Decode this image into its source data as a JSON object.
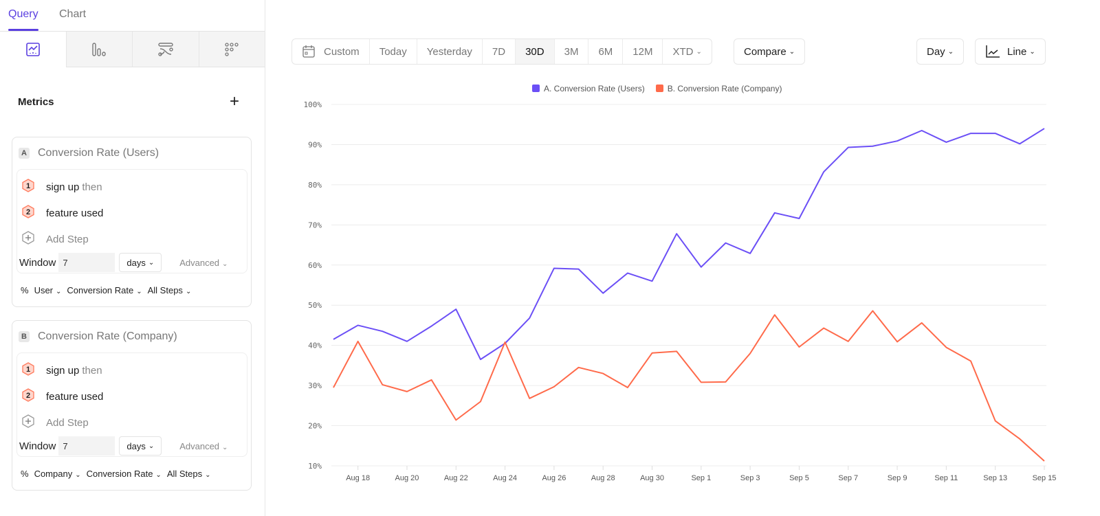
{
  "sidebar": {
    "tabs": [
      {
        "label": "Query",
        "active": true
      },
      {
        "label": "Chart",
        "active": false
      }
    ],
    "viz_icons": [
      "line-chart-icon",
      "bar-chart-icon",
      "flows-icon",
      "retention-grid-icon"
    ],
    "metrics_title": "Metrics",
    "cards": [
      {
        "letter": "A",
        "title": "Conversion Rate (Users)",
        "steps": [
          {
            "n": "1",
            "label": "sign up",
            "suffix": "then"
          },
          {
            "n": "2",
            "label": "feature used",
            "suffix": ""
          }
        ],
        "add_step": "Add Step",
        "window_label": "Window",
        "window_value": "7",
        "window_unit": "days",
        "advanced": "Advanced",
        "footer": [
          "%",
          "User",
          "Conversion Rate",
          "All Steps"
        ]
      },
      {
        "letter": "B",
        "title": "Conversion Rate (Company)",
        "steps": [
          {
            "n": "1",
            "label": "sign up",
            "suffix": "then"
          },
          {
            "n": "2",
            "label": "feature used",
            "suffix": ""
          }
        ],
        "add_step": "Add Step",
        "window_label": "Window",
        "window_value": "7",
        "window_unit": "days",
        "advanced": "Advanced",
        "footer": [
          "%",
          "Company",
          "Conversion Rate",
          "All Steps"
        ]
      }
    ]
  },
  "toolbar": {
    "ranges": [
      "Custom",
      "Today",
      "Yesterday",
      "7D",
      "30D",
      "3M",
      "6M",
      "12M",
      "XTD"
    ],
    "selected": "30D",
    "compare": "Compare",
    "interval": "Day",
    "chart_type": "Line"
  },
  "colors": {
    "accent": "#5a3fe0",
    "series_a": "#6b4ff6",
    "series_b": "#ff6a4a"
  },
  "chart_data": {
    "type": "line",
    "legend": "top-center",
    "ylim": [
      10,
      100
    ],
    "yticks": [
      "100%",
      "90%",
      "80%",
      "70%",
      "60%",
      "50%",
      "40%",
      "30%",
      "20%",
      "10%"
    ],
    "x": [
      "Aug 17",
      "Aug 18",
      "Aug 19",
      "Aug 20",
      "Aug 21",
      "Aug 22",
      "Aug 23",
      "Aug 24",
      "Aug 25",
      "Aug 26",
      "Aug 27",
      "Aug 28",
      "Aug 29",
      "Aug 30",
      "Aug 31",
      "Sep 1",
      "Sep 2",
      "Sep 3",
      "Sep 4",
      "Sep 5",
      "Sep 6",
      "Sep 7",
      "Sep 8",
      "Sep 9",
      "Sep 10",
      "Sep 11",
      "Sep 12",
      "Sep 13",
      "Sep 14",
      "Sep 15"
    ],
    "xticks": [
      "Aug 18",
      "Aug 20",
      "Aug 22",
      "Aug 24",
      "Aug 26",
      "Aug 28",
      "Aug 30",
      "Sep 1",
      "Sep 3",
      "Sep 5",
      "Sep 7",
      "Sep 9",
      "Sep 11",
      "Sep 13",
      "Sep 15"
    ],
    "grid": true,
    "series": [
      {
        "name": "A. Conversion Rate (Users)",
        "color": "#6b4ff6",
        "values": [
          41.5,
          45,
          43.5,
          41,
          44.8,
          49,
          36.5,
          40.5,
          46.8,
          59.2,
          59,
          53,
          58,
          56,
          67.8,
          59.5,
          65.5,
          62.9,
          73,
          71.6,
          83.2,
          89.3,
          89.6,
          90.9,
          93.5,
          90.6,
          92.8,
          92.8,
          90.2,
          94
        ]
      },
      {
        "name": "B. Conversion Rate (Company)",
        "color": "#ff6a4a",
        "values": [
          29.5,
          41,
          30.2,
          28.5,
          31.4,
          21.4,
          26,
          40.8,
          26.8,
          29.7,
          34.5,
          33,
          29.5,
          38.1,
          38.5,
          30.8,
          30.9,
          38,
          47.6,
          39.6,
          44.3,
          41,
          48.6,
          40.9,
          45.6,
          39.5,
          36.1,
          21.2,
          16.7,
          11.2
        ]
      }
    ]
  }
}
